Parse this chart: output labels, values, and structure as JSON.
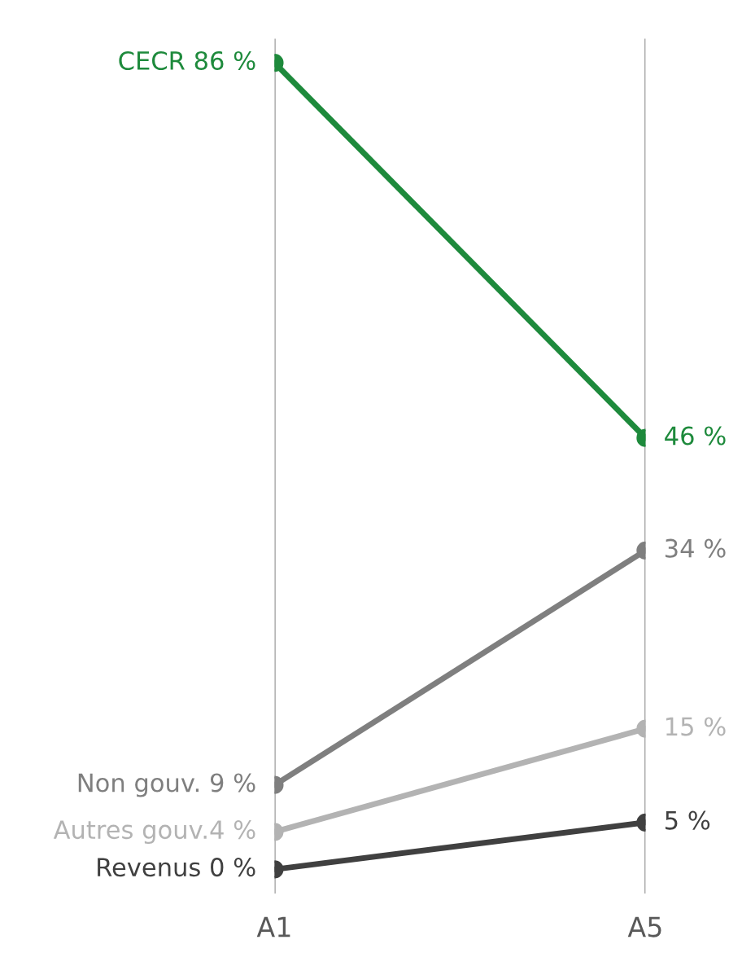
{
  "chart_data": {
    "type": "line",
    "categories": [
      "A1",
      "A5"
    ],
    "grid": "x",
    "marker": "circle",
    "line_style": "solid",
    "series": [
      {
        "color": "#1e8a3c",
        "values": [
          86,
          46
        ],
        "value_labels": [
          "CECR 86 %",
          "46 %"
        ]
      },
      {
        "color": "#7f7f7f",
        "values": [
          9,
          34
        ],
        "value_labels": [
          "Non gouv. 9 %",
          "34 %"
        ]
      },
      {
        "color": "#b3b3b3",
        "values": [
          4,
          15
        ],
        "value_labels": [
          "Autres gouv.4 %",
          "15 %"
        ]
      },
      {
        "color": "#404040",
        "values": [
          0,
          5
        ],
        "value_labels": [
          "Revenus 0 %",
          "5 %"
        ]
      }
    ]
  }
}
